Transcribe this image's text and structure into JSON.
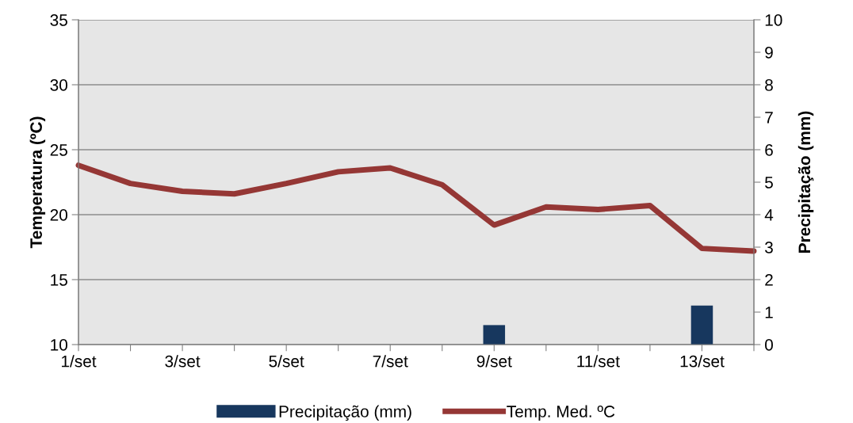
{
  "chart_data": {
    "type": "line",
    "categories": [
      "1/set",
      null,
      "3/set",
      null,
      "5/set",
      null,
      "7/set",
      null,
      "9/set",
      null,
      "11/set",
      null,
      "13/set",
      null
    ],
    "series": [
      {
        "name": "Precipitação (mm)",
        "type": "bar",
        "axis": "y2",
        "color": "#17375e",
        "values": [
          0,
          0,
          0,
          0,
          0,
          0,
          0,
          0,
          0.6,
          0,
          0,
          0,
          1.2,
          0
        ]
      },
      {
        "name": "Temp. Med. ºC",
        "color": "#953735",
        "values": [
          23.8,
          22.4,
          21.8,
          21.6,
          22.4,
          23.3,
          23.6,
          22.3,
          19.2,
          20.6,
          20.4,
          20.7,
          17.4,
          17.2
        ]
      }
    ],
    "ylabel": "Temperatura (ºC)",
    "y2label": "Precipitação (mm)",
    "ylim": [
      10,
      35
    ],
    "yticks": [
      10,
      15,
      20,
      25,
      30,
      35
    ],
    "y2lim": [
      0,
      10
    ],
    "y2ticks": [
      0,
      1,
      2,
      3,
      4,
      5,
      6,
      7,
      8,
      9,
      10
    ],
    "grid": "y",
    "legend": "bottom",
    "marker": "none",
    "line_style": "solid"
  }
}
